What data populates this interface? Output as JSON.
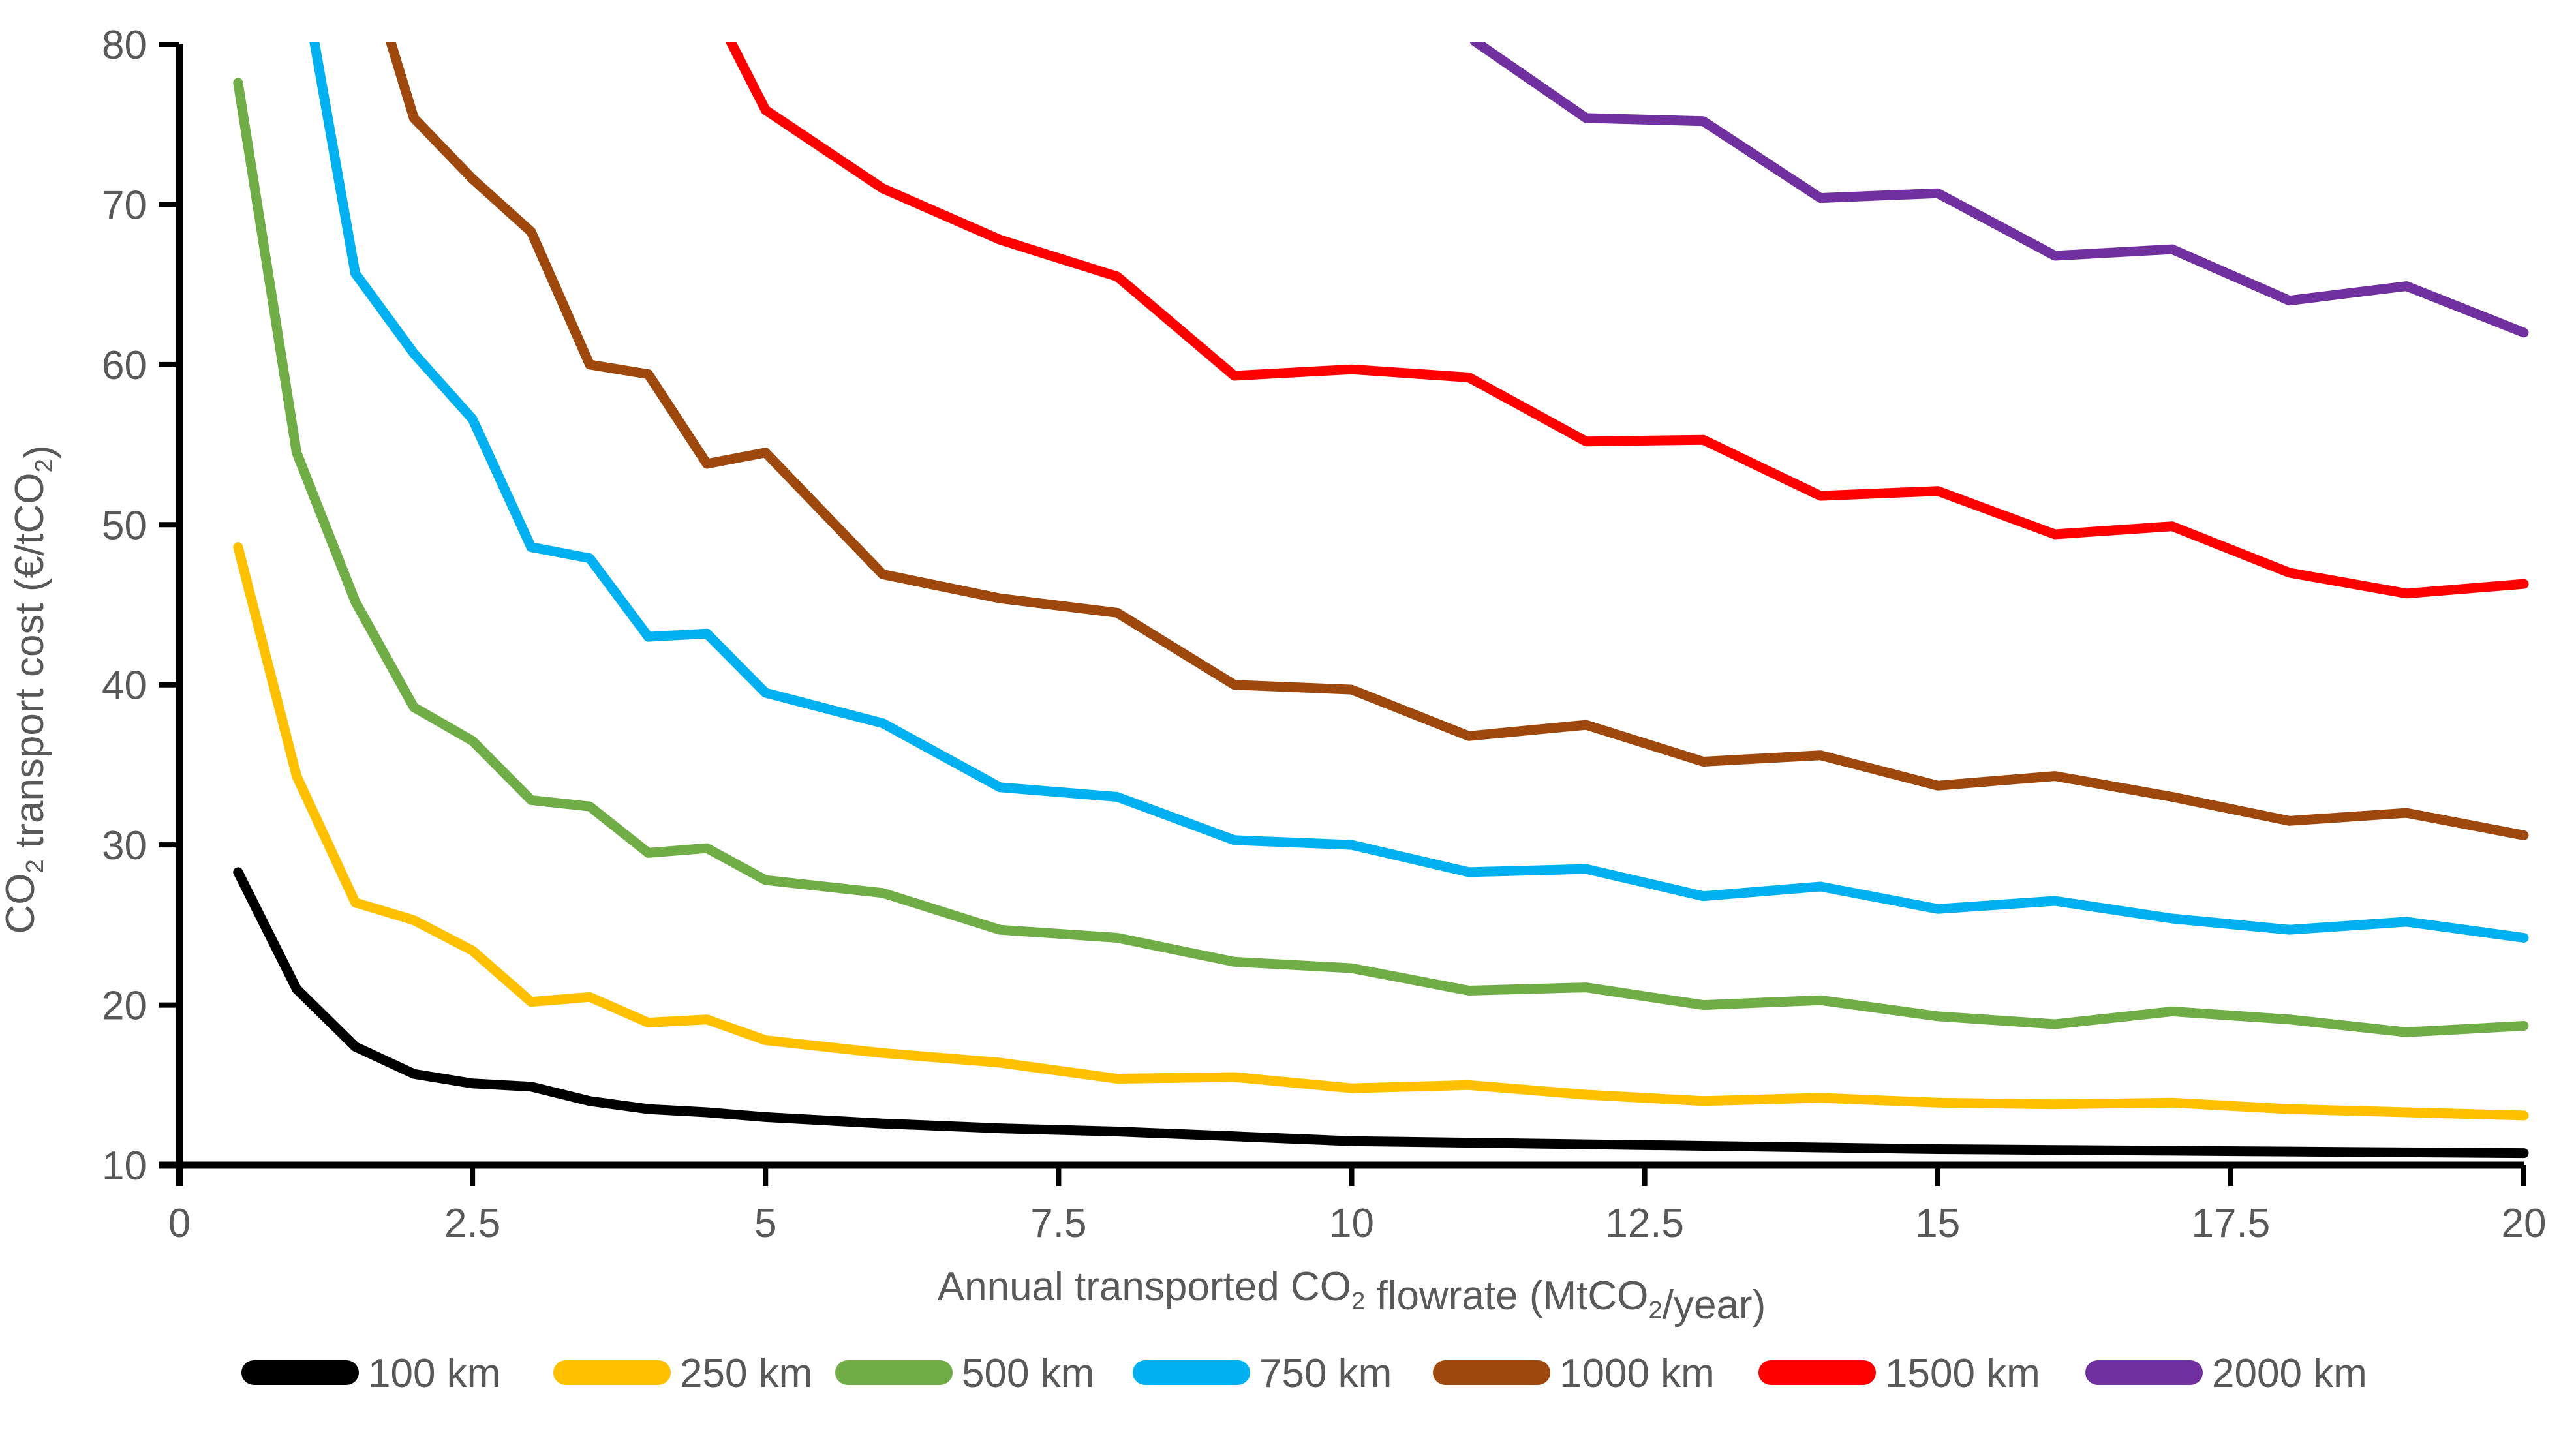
{
  "chart_data": {
    "type": "line",
    "title": "",
    "xlabel": "Annual transported CO₂ flowrate (MtCO₂/year)",
    "ylabel": "CO₂ transport cost (€/tCO₂)",
    "xlabel_parts": [
      [
        "Annual transported CO",
        0
      ],
      [
        "2",
        1
      ],
      [
        " flowrate (MtCO",
        0
      ],
      [
        "2",
        1
      ],
      [
        "/year)",
        0
      ]
    ],
    "ylabel_parts": [
      [
        "CO",
        0
      ],
      [
        "2",
        1
      ],
      [
        " transport cost (€/tCO",
        0
      ],
      [
        "2",
        1
      ],
      [
        ")",
        0
      ]
    ],
    "xlim": [
      0,
      20
    ],
    "ylim": [
      10,
      80
    ],
    "x_ticks": [
      "0",
      "2.5",
      "5",
      "7.5",
      "10",
      "12.5",
      "15",
      "17.5",
      "20"
    ],
    "x_tick_values": [
      0,
      2.5,
      5,
      7.5,
      10,
      12.5,
      15,
      17.5,
      20
    ],
    "y_ticks": [
      "10",
      "20",
      "30",
      "40",
      "50",
      "60",
      "70",
      "80"
    ],
    "y_tick_values": [
      10,
      20,
      30,
      40,
      50,
      60,
      70,
      80
    ],
    "grid": false,
    "legend_position": "bottom",
    "axis_color": "#000000",
    "tick_label_color": "#595959",
    "clip_top_value": 80.2,
    "series": [
      {
        "name": "100 km",
        "color": "#000000",
        "points": [
          [
            0.5,
            28.3
          ],
          [
            1,
            21.0
          ],
          [
            1.5,
            17.4
          ],
          [
            2,
            15.7
          ],
          [
            2.5,
            15.1
          ],
          [
            3,
            14.9
          ],
          [
            3.5,
            14.0
          ],
          [
            4,
            13.5
          ],
          [
            4.5,
            13.3
          ],
          [
            5,
            13.0
          ],
          [
            6,
            12.6
          ],
          [
            7,
            12.3
          ],
          [
            8,
            12.1
          ],
          [
            9,
            11.8
          ],
          [
            10,
            11.5
          ],
          [
            11,
            11.4
          ],
          [
            12,
            11.3
          ],
          [
            13,
            11.2
          ],
          [
            14,
            11.1
          ],
          [
            15,
            11.0
          ],
          [
            16,
            10.95
          ],
          [
            17,
            10.9
          ],
          [
            18,
            10.85
          ],
          [
            19,
            10.8
          ],
          [
            20,
            10.75
          ]
        ]
      },
      {
        "name": "250 km",
        "color": "#FFC000",
        "points": [
          [
            0.5,
            48.6
          ],
          [
            1,
            34.3
          ],
          [
            1.5,
            26.4
          ],
          [
            2,
            25.3
          ],
          [
            2.5,
            23.4
          ],
          [
            3,
            20.2
          ],
          [
            3.5,
            20.5
          ],
          [
            4,
            18.9
          ],
          [
            4.5,
            19.1
          ],
          [
            5,
            17.8
          ],
          [
            6,
            17.0
          ],
          [
            7,
            16.4
          ],
          [
            8,
            15.4
          ],
          [
            9,
            15.5
          ],
          [
            10,
            14.8
          ],
          [
            11,
            15.0
          ],
          [
            12,
            14.4
          ],
          [
            13,
            14.0
          ],
          [
            14,
            14.2
          ],
          [
            15,
            13.9
          ],
          [
            16,
            13.8
          ],
          [
            17,
            13.9
          ],
          [
            18,
            13.5
          ],
          [
            19,
            13.3
          ],
          [
            20,
            13.1
          ]
        ]
      },
      {
        "name": "500 km",
        "color": "#70AD47",
        "points": [
          [
            0.5,
            77.6
          ],
          [
            1,
            54.5
          ],
          [
            1.5,
            45.2
          ],
          [
            2,
            38.6
          ],
          [
            2.5,
            36.5
          ],
          [
            3,
            32.8
          ],
          [
            3.5,
            32.4
          ],
          [
            4,
            29.5
          ],
          [
            4.5,
            29.8
          ],
          [
            5,
            27.8
          ],
          [
            6,
            27.0
          ],
          [
            7,
            24.7
          ],
          [
            8,
            24.2
          ],
          [
            9,
            22.7
          ],
          [
            10,
            22.3
          ],
          [
            11,
            20.9
          ],
          [
            12,
            21.1
          ],
          [
            13,
            20.0
          ],
          [
            14,
            20.3
          ],
          [
            15,
            19.3
          ],
          [
            16,
            18.8
          ],
          [
            17,
            19.6
          ],
          [
            18,
            19.1
          ],
          [
            19,
            18.3
          ],
          [
            20,
            18.7
          ]
        ]
      },
      {
        "name": "750 km",
        "color": "#00B0F0",
        "points": [
          [
            1.15,
            80.2
          ],
          [
            1.5,
            65.7
          ],
          [
            2,
            60.7
          ],
          [
            2.5,
            56.6
          ],
          [
            3,
            48.6
          ],
          [
            3.5,
            47.9
          ],
          [
            4,
            43.0
          ],
          [
            4.5,
            43.2
          ],
          [
            5,
            39.5
          ],
          [
            6,
            37.6
          ],
          [
            7,
            33.6
          ],
          [
            8,
            33.0
          ],
          [
            9,
            30.3
          ],
          [
            10,
            30.0
          ],
          [
            11,
            28.3
          ],
          [
            12,
            28.5
          ],
          [
            13,
            26.8
          ],
          [
            14,
            27.4
          ],
          [
            15,
            26.0
          ],
          [
            16,
            26.5
          ],
          [
            17,
            25.4
          ],
          [
            18,
            24.7
          ],
          [
            19,
            25.2
          ],
          [
            20,
            24.2
          ]
        ]
      },
      {
        "name": "1000 km",
        "color": "#9E480E",
        "points": [
          [
            1.8,
            80.2
          ],
          [
            2,
            75.4
          ],
          [
            2.5,
            71.6
          ],
          [
            3,
            68.3
          ],
          [
            3.5,
            60.0
          ],
          [
            4,
            59.4
          ],
          [
            4.5,
            53.8
          ],
          [
            5,
            54.5
          ],
          [
            6,
            46.9
          ],
          [
            7,
            45.4
          ],
          [
            8,
            44.5
          ],
          [
            9,
            40.0
          ],
          [
            10,
            39.7
          ],
          [
            11,
            36.8
          ],
          [
            12,
            37.5
          ],
          [
            13,
            35.2
          ],
          [
            14,
            35.6
          ],
          [
            15,
            33.7
          ],
          [
            16,
            34.3
          ],
          [
            17,
            33.0
          ],
          [
            18,
            31.5
          ],
          [
            19,
            32.0
          ],
          [
            20,
            30.6
          ]
        ]
      },
      {
        "name": "1500 km",
        "color": "#FF0000",
        "points": [
          [
            4.7,
            80.2
          ],
          [
            5,
            75.9
          ],
          [
            6,
            71.0
          ],
          [
            7,
            67.8
          ],
          [
            8,
            65.5
          ],
          [
            9,
            59.3
          ],
          [
            10,
            59.7
          ],
          [
            11,
            59.2
          ],
          [
            12,
            55.2
          ],
          [
            13,
            55.3
          ],
          [
            14,
            51.8
          ],
          [
            15,
            52.1
          ],
          [
            16,
            49.4
          ],
          [
            17,
            49.9
          ],
          [
            18,
            47.0
          ],
          [
            19,
            45.7
          ],
          [
            20,
            46.3
          ]
        ]
      },
      {
        "name": "2000 km",
        "color": "#7030A0",
        "points": [
          [
            11.05,
            80.2
          ],
          [
            12,
            75.4
          ],
          [
            13,
            75.2
          ],
          [
            14,
            70.4
          ],
          [
            15,
            70.7
          ],
          [
            16,
            66.8
          ],
          [
            17,
            67.2
          ],
          [
            18,
            64.0
          ],
          [
            19,
            64.9
          ],
          [
            20,
            62.0
          ]
        ]
      }
    ]
  },
  "legend": {
    "items": [
      {
        "label": "100 km",
        "color": "#000000"
      },
      {
        "label": "250 km",
        "color": "#FFC000"
      },
      {
        "label": "500 km",
        "color": "#70AD47"
      },
      {
        "label": "750 km",
        "color": "#00B0F0"
      },
      {
        "label": "1000 km",
        "color": "#9E480E"
      },
      {
        "label": "1500 km",
        "color": "#FF0000"
      },
      {
        "label": "2000 km",
        "color": "#7030A0"
      }
    ]
  }
}
